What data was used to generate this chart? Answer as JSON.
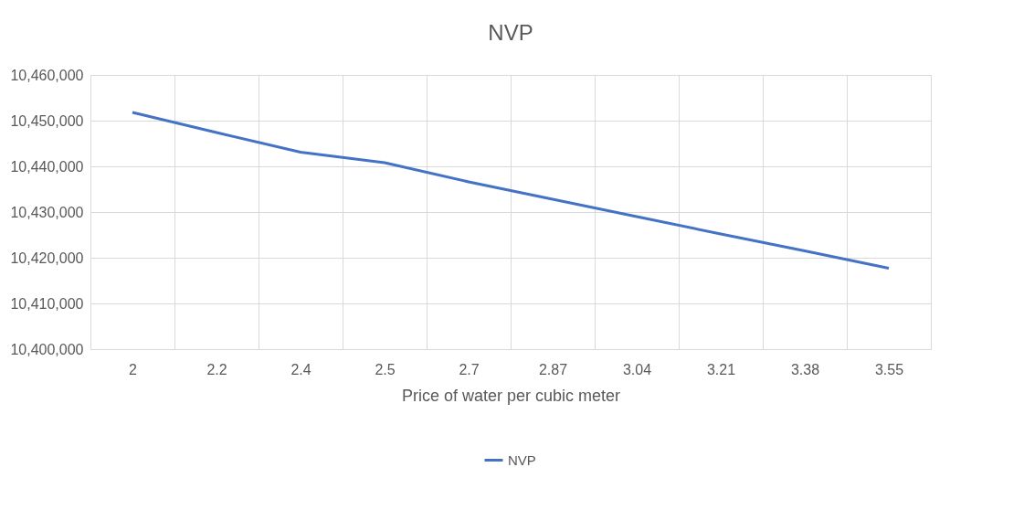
{
  "chart_data": {
    "type": "line",
    "title": "NVP",
    "xlabel": "Price of water per cubic meter",
    "categories": [
      "2",
      "2.2",
      "2.4",
      "2.5",
      "2.7",
      "2.87",
      "3.04",
      "3.21",
      "3.38",
      "3.55"
    ],
    "series": [
      {
        "name": "NVP",
        "color": "#4472c4",
        "values": [
          10451800,
          10447400,
          10443100,
          10440800,
          10436600,
          10432800,
          10429000,
          10425200,
          10421500,
          10417700
        ]
      }
    ],
    "ylim": [
      10400000,
      10460000
    ],
    "yticks": [
      {
        "value": 10400000,
        "label": "10,400,000"
      },
      {
        "value": 10410000,
        "label": "10,410,000"
      },
      {
        "value": 10420000,
        "label": "10,420,000"
      },
      {
        "value": 10430000,
        "label": "10,430,000"
      },
      {
        "value": 10440000,
        "label": "10,440,000"
      },
      {
        "value": 10450000,
        "label": "10,450,000"
      },
      {
        "value": 10460000,
        "label": "10,460,000"
      }
    ],
    "grid": true,
    "legend": "bottom",
    "line_style": "solid",
    "marker": "none"
  }
}
